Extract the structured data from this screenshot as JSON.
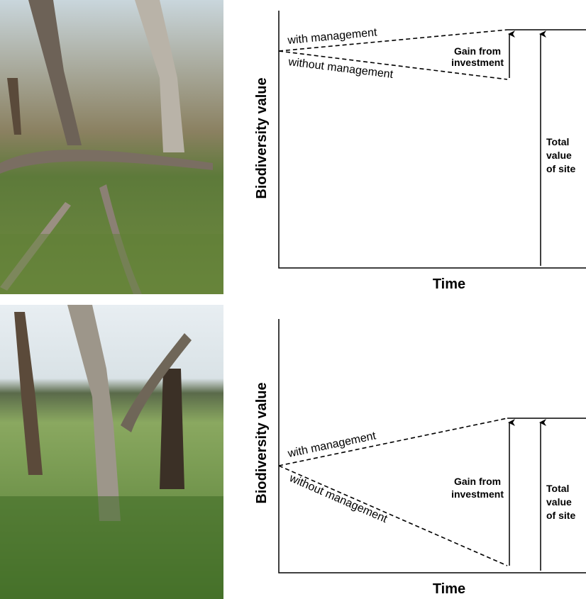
{
  "panels": [
    {
      "y_axis_label": "Biodiversity value",
      "x_axis_label": "Time",
      "with_label": "with management",
      "without_label": "without management",
      "gain_label": [
        "Gain from",
        "investment"
      ],
      "total_label": [
        "Total",
        "value",
        "of site"
      ]
    },
    {
      "y_axis_label": "Biodiversity value",
      "x_axis_label": "Time",
      "with_label": "with management",
      "without_label": "without management",
      "gain_label": [
        "Gain from",
        "investment"
      ],
      "total_label": [
        "Total",
        "value",
        "of site"
      ]
    }
  ]
}
